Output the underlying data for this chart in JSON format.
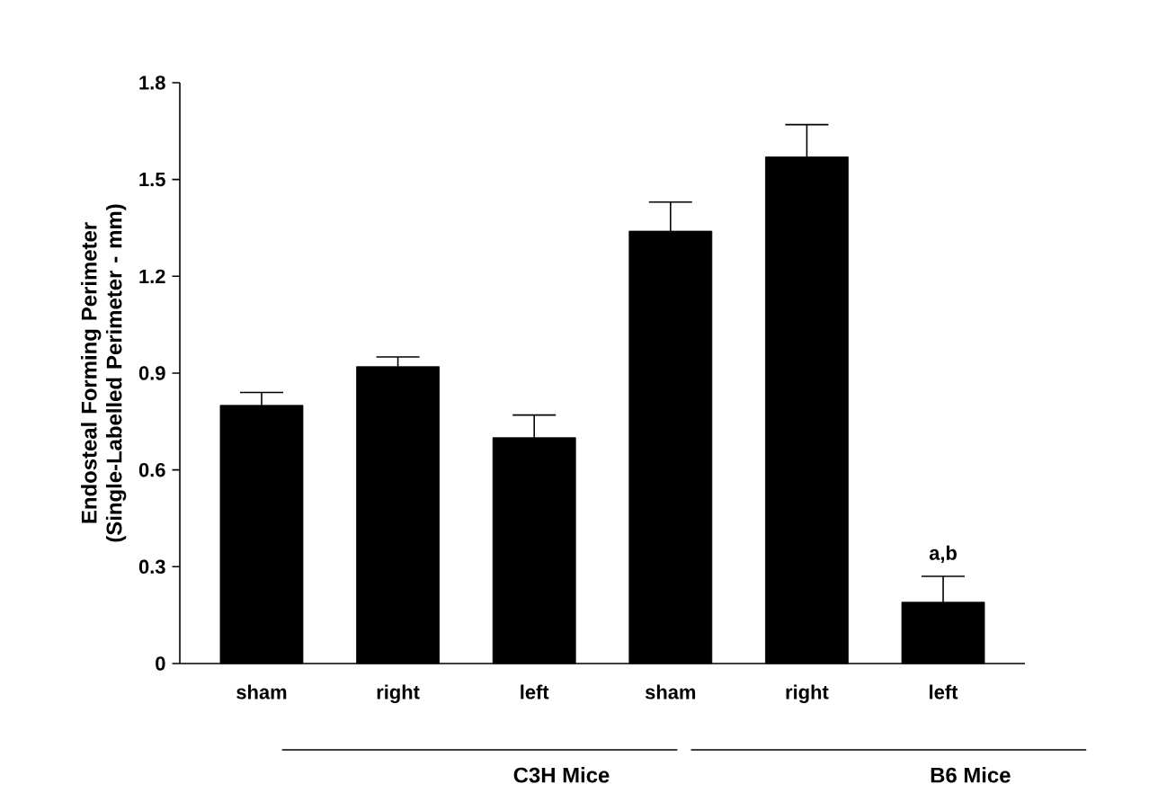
{
  "chart_data": {
    "type": "bar",
    "ylabel": "Endosteal Forming Perimeter (Single-Labelled Perimeter - mm)",
    "categories": [
      "sham",
      "right",
      "left",
      "sham",
      "right",
      "left"
    ],
    "values": [
      0.8,
      0.92,
      0.7,
      1.34,
      1.57,
      0.19
    ],
    "errors": [
      0.04,
      0.03,
      0.07,
      0.09,
      0.1,
      0.08
    ],
    "color": "#000000",
    "ylim": [
      0,
      1.8
    ],
    "yticks": [
      0,
      0.3,
      0.6,
      0.9,
      1.2,
      1.5,
      1.8
    ],
    "annotations": [
      "a,b",
      "C3H Mice",
      "B6 Mice"
    ]
  }
}
